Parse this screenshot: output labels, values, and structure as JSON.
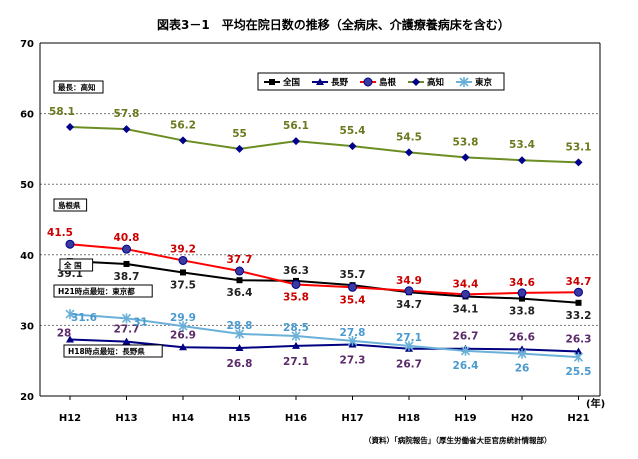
{
  "chart_data": {
    "type": "line",
    "title": "図表3－1　平均在院日数の推移（全病床、介護療養病床を含む）",
    "categories": [
      "H12",
      "H13",
      "H14",
      "H15",
      "H16",
      "H17",
      "H18",
      "H19",
      "H20",
      "H21"
    ],
    "x_unit": "(年)",
    "ylim": [
      20,
      70
    ],
    "yticks": [
      20,
      30,
      40,
      50,
      60,
      70
    ],
    "grid": "horizontal-dashed",
    "legend_position": "top-right",
    "series": [
      {
        "name": "全国",
        "color": "#000000",
        "marker": "square",
        "label_color": "#222222",
        "values": [
          39.1,
          38.7,
          37.5,
          36.4,
          36.3,
          35.7,
          34.7,
          34.1,
          33.8,
          33.2
        ],
        "labels": [
          "39.1",
          "38.7",
          "37.5",
          "36.4",
          "36.3",
          "35.7",
          "34.7",
          "34.1",
          "33.8",
          "33.2"
        ]
      },
      {
        "name": "長野",
        "color": "#000080",
        "marker": "triangle",
        "label_color": "#5a2a6a",
        "values": [
          28,
          27.7,
          26.9,
          26.8,
          27.1,
          27.3,
          26.7,
          26.7,
          26.6,
          26.3
        ],
        "labels": [
          "28",
          "27.7",
          "26.9",
          "26.8",
          "27.1",
          "27.3",
          "26.7",
          "26.7",
          "26.6",
          "26.3"
        ]
      },
      {
        "name": "島根",
        "color": "#ff0000",
        "marker": "circle",
        "label_color": "#cc0000",
        "values": [
          41.5,
          40.8,
          39.2,
          37.7,
          35.8,
          35.4,
          34.9,
          34.4,
          34.6,
          34.7
        ],
        "labels": [
          "41.5",
          "40.8",
          "39.2",
          "37.7",
          "35.8",
          "35.4",
          "34.9",
          "34.4",
          "34.6",
          "34.7"
        ]
      },
      {
        "name": "高知",
        "color": "#6b8e23",
        "marker": "diamond",
        "label_color": "#6b7a1f",
        "values": [
          58.1,
          57.8,
          56.2,
          55,
          56.1,
          55.4,
          54.5,
          53.8,
          53.4,
          53.1
        ],
        "labels": [
          "58.1",
          "57.8",
          "56.2",
          "55",
          "56.1",
          "55.4",
          "54.5",
          "53.8",
          "53.4",
          "53.1"
        ]
      },
      {
        "name": "東京",
        "color": "#6ab0d8",
        "marker": "star",
        "label_color": "#4a9ad0",
        "values": [
          31.6,
          31,
          29.9,
          28.8,
          28.5,
          27.8,
          27.1,
          26.4,
          26,
          25.5
        ],
        "labels": [
          "31.6",
          "31",
          "29.9",
          "28.8",
          "28.5",
          "27.8",
          "27.1",
          "26.4",
          "26",
          "25.5"
        ]
      }
    ],
    "annotations": [
      {
        "text": "最長：高知",
        "target": "高知"
      },
      {
        "text": "島根県",
        "target": "島根"
      },
      {
        "text": "全 国",
        "target": "全国"
      },
      {
        "text": "H21時点最短：東京都",
        "target": "東京"
      },
      {
        "text": "H18時点最短：長野県",
        "target": "長野"
      }
    ],
    "source": "（資料）「病院報告」（厚生労働省大臣官房統計情報部）"
  }
}
